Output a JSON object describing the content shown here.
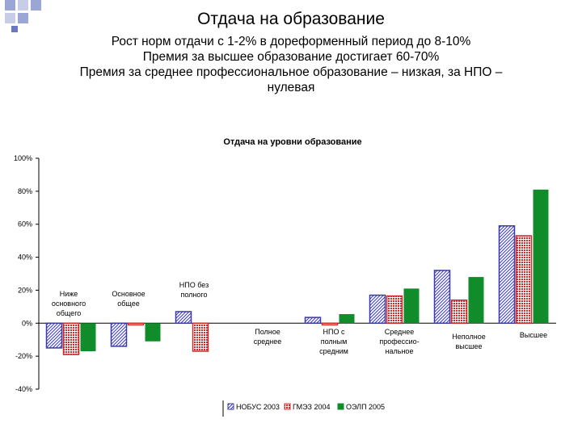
{
  "slide": {
    "title": "Отдача на образование",
    "bullets": [
      "Рост норм отдачи с 1-2% в дореформенный период до 8-10%",
      "Премия за высшее образование достигает 60-70%",
      "Премия за среднее профессиональное образование – низкая, за НПО –",
      "нулевая"
    ]
  },
  "chart_data": {
    "type": "bar",
    "title": "Отдача на уровни образование",
    "xlabel": "",
    "ylabel": "",
    "ylim": [
      -40,
      100
    ],
    "yticks": [
      "100%",
      "80%",
      "60%",
      "40%",
      "20%",
      "0%",
      "-20%",
      "-40%"
    ],
    "yticks_values": [
      100,
      80,
      60,
      40,
      20,
      0,
      -20,
      -40
    ],
    "grid": false,
    "legend_position": "bottom",
    "categories": [
      [
        "Ниже",
        "основного",
        "общего"
      ],
      [
        "Основное",
        "общее"
      ],
      [
        "НПО без",
        "полного"
      ],
      [
        "Полное",
        "среднее"
      ],
      [
        "НПО с",
        "полным",
        "средним"
      ],
      [
        "Среднее",
        "профессио-",
        "нальное"
      ],
      [
        "Неполное",
        "высшее"
      ],
      [
        "Высшее"
      ]
    ],
    "series": [
      {
        "name": "НОБУС 2003",
        "values": [
          -15,
          -14,
          7,
          0,
          3.5,
          17,
          32,
          59
        ],
        "color": "#3a3aa8",
        "pattern": "hatch"
      },
      {
        "name": "ГМЭЗ 2004",
        "values": [
          -19,
          -1,
          -17,
          0,
          -1,
          16.5,
          14,
          53
        ],
        "color": "#d42a2a",
        "pattern": "dots"
      },
      {
        "name": "ОЭЛП 2005",
        "values": [
          -17,
          -11,
          0,
          0,
          5.5,
          21,
          28,
          81
        ],
        "color": "#108c2a",
        "pattern": "solid"
      }
    ]
  }
}
